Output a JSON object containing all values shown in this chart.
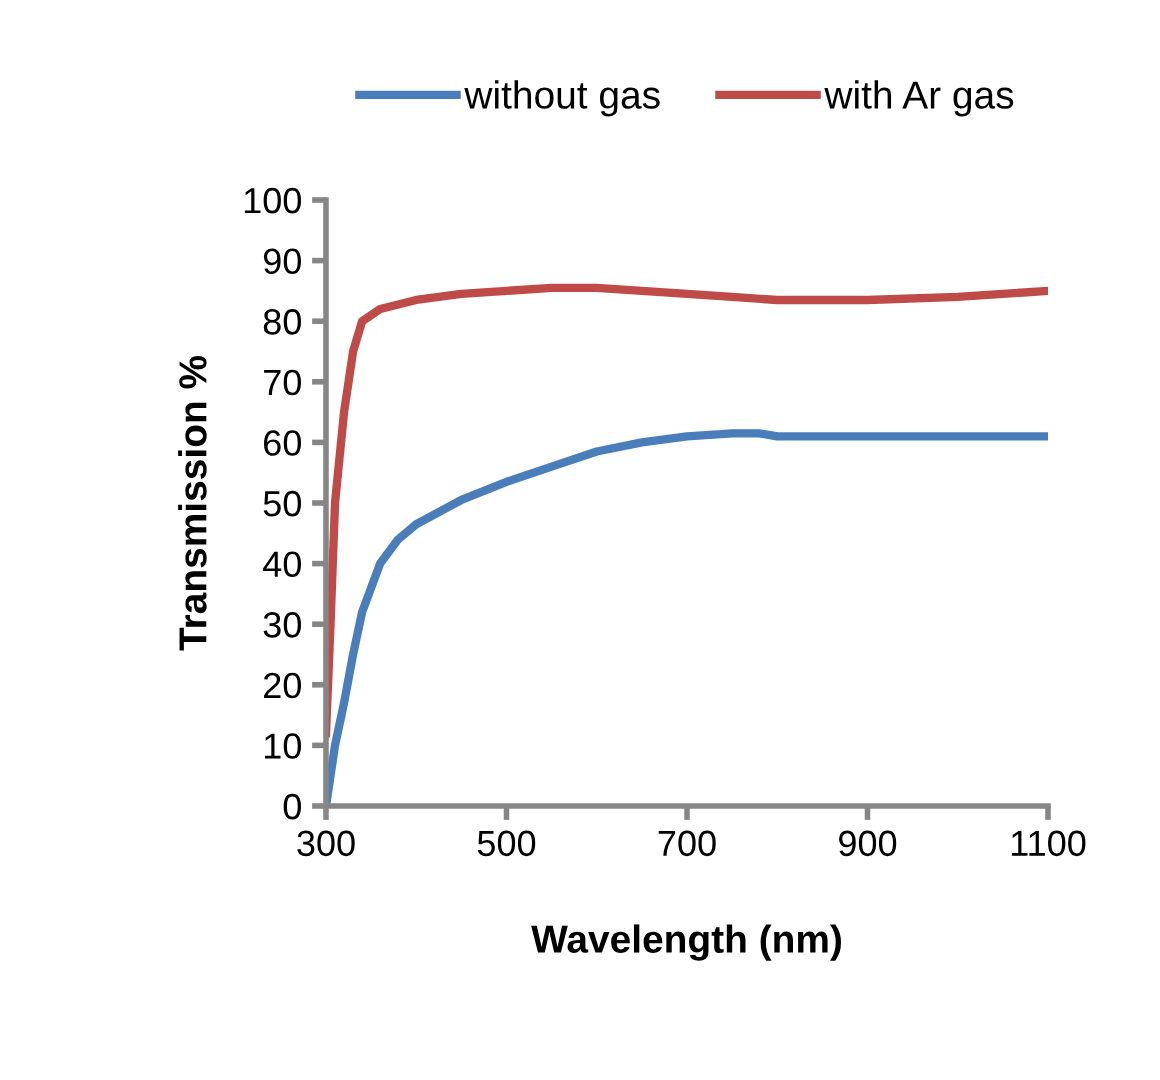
{
  "chart_data": {
    "type": "line",
    "xlabel": "Wavelength (nm)",
    "ylabel": "Transmission %",
    "xlim": [
      300,
      1100
    ],
    "xticks": [
      300,
      500,
      700,
      900,
      1100
    ],
    "ylim": [
      0,
      100
    ],
    "yticks": [
      0,
      10,
      20,
      30,
      40,
      50,
      60,
      70,
      80,
      90,
      100
    ],
    "grid": false,
    "legend": "top",
    "marker": "none",
    "line_style": "solid",
    "series": [
      {
        "name": "without gas",
        "color": "#4a7ebb",
        "x": [
          300,
          305,
          310,
          320,
          330,
          340,
          360,
          380,
          400,
          450,
          500,
          550,
          600,
          650,
          700,
          750,
          780,
          800,
          900,
          1000,
          1100
        ],
        "values": [
          0,
          5,
          10,
          17,
          25,
          32,
          40,
          44,
          46.5,
          50.5,
          53.5,
          56,
          58.5,
          60,
          61,
          61.5,
          61.5,
          61,
          61,
          61,
          61
        ]
      },
      {
        "name": "with Ar gas",
        "color": "#be4b48",
        "x": [
          300,
          305,
          310,
          320,
          330,
          340,
          360,
          400,
          450,
          500,
          550,
          600,
          650,
          700,
          750,
          800,
          900,
          1000,
          1050,
          1100
        ],
        "values": [
          12,
          30,
          50,
          65,
          75,
          80,
          82,
          83.5,
          84.5,
          85,
          85.5,
          85.5,
          85,
          84.5,
          84,
          83.5,
          83.5,
          84,
          84.5,
          85
        ]
      }
    ]
  }
}
